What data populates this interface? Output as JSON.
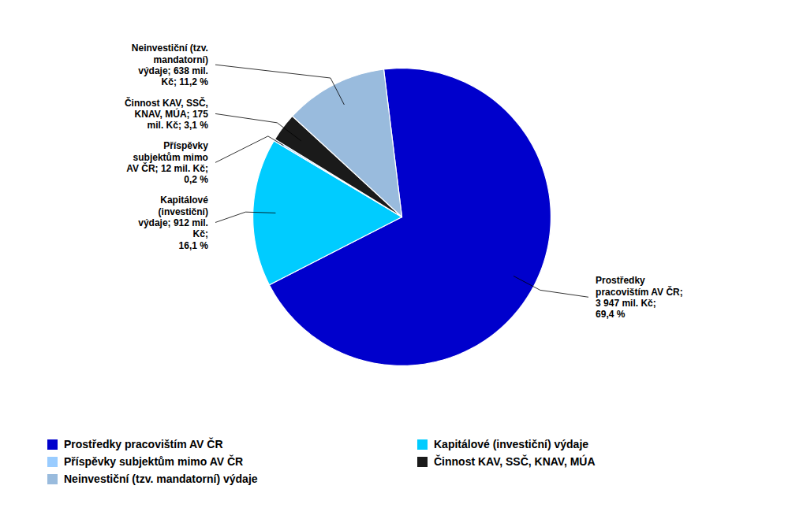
{
  "chart_data": {
    "type": "pie",
    "categories": [
      "Prostředky pracovištím AV ČR",
      "Kapitálové (investiční) výdaje",
      "Příspěvky subjektům mimo AV ČR",
      "Činnost KAV, SSČ, KNAV, MÚA",
      "Neinvestiční (tzv. mandatorní) výdaje"
    ],
    "values": [
      69.4,
      16.1,
      0.2,
      3.1,
      11.2
    ],
    "colors": [
      "#0000CC",
      "#00CCFF",
      "#99CCFF",
      "#1A1A1A",
      "#99BBDD"
    ],
    "annotations": [
      "Prostředky\npracovištím AV ČR;\n3 947 mil. Kč;\n69,4 %",
      "Kapitálové\n(investiční)\nvýdaje; 912 mil.\nKč;\n16,1 %",
      "Příspěvky\nsubjektům mimo\nAV ČR; 12 mil. Kč;\n0,2 %",
      "Činnost KAV, SSČ,\nKNAV, MÚA; 175\nmil. Kč; 3,1 %",
      "Neinvestiční (tzv.\nmandatorní)\nvýdaje; 638 mil.\nKč; 11,2 %"
    ],
    "legend": "bottom"
  }
}
